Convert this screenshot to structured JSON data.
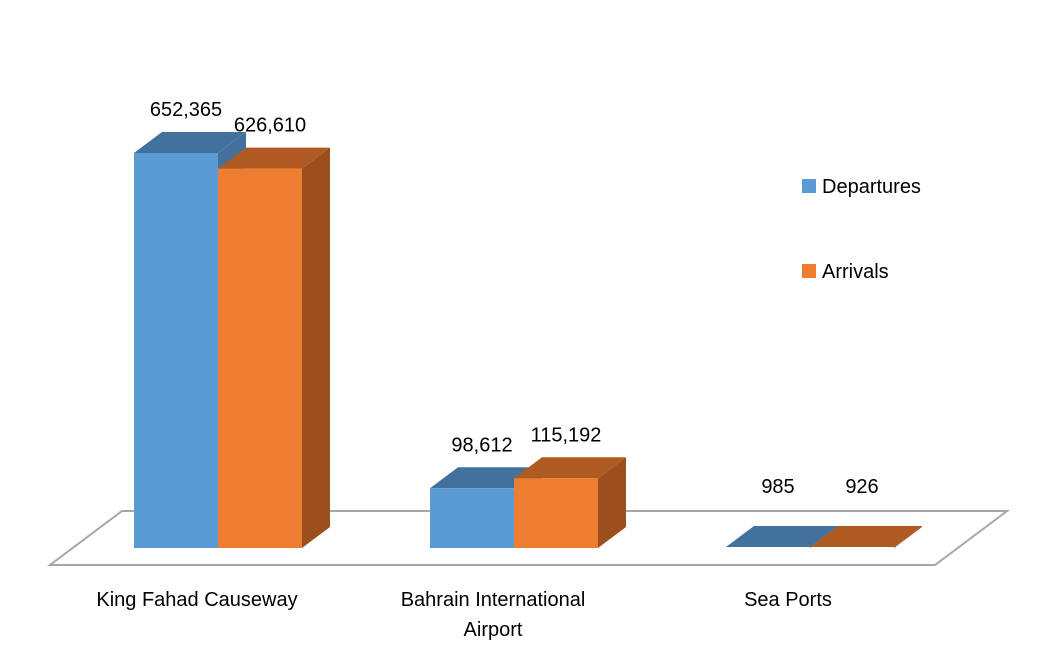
{
  "chart_data": {
    "type": "bar",
    "title": "",
    "xlabel": "",
    "ylabel": "",
    "categories": [
      "King Fahad Causeway",
      "Bahrain International Airport",
      "Sea Ports"
    ],
    "series": [
      {
        "name": "Departures",
        "values": [
          652365,
          98612,
          985
        ],
        "labels": [
          "652,365",
          "98,612",
          "985"
        ]
      },
      {
        "name": "Arrivals",
        "values": [
          626610,
          115192,
          926
        ],
        "labels": [
          "626,610",
          "115,192",
          "926"
        ]
      }
    ],
    "ylim": [
      0,
      700000
    ],
    "grid": false,
    "three_d": true,
    "legend_position": "right",
    "colors": {
      "departures_front": "#5b9bd5",
      "departures_top": "#41719c",
      "departures_side": "#41719c",
      "arrivals_front": "#ed7d31",
      "arrivals_top": "#ae5a21",
      "arrivals_side": "#9c4f1c",
      "floor_stroke": "#a6a6a6"
    }
  }
}
